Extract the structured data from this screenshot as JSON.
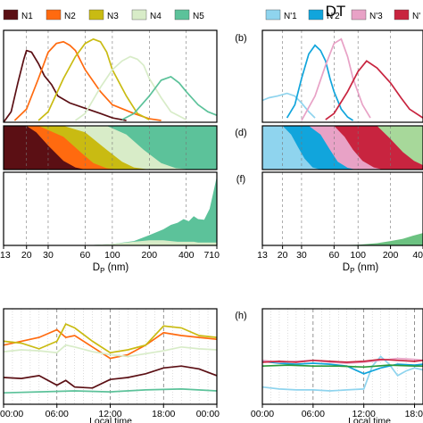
{
  "figure": {
    "title": "DT",
    "panel_labels": [
      "(b)",
      "(d)",
      "(f)",
      "(h)"
    ],
    "xlabel_size": "D",
    "xlabel_size_sub": "P",
    "xlabel_size_unit": " (nm)",
    "xlabel_time": "Local time",
    "size_ticks": [
      "13",
      "20",
      "30",
      "60",
      "100",
      "200",
      "400",
      "710"
    ],
    "size_ticks_right": [
      "13",
      "20",
      "30",
      "60",
      "100",
      "200",
      "40"
    ],
    "time_ticks": [
      "00:00",
      "06:00",
      "12:00",
      "18:00",
      "00:00"
    ],
    "time_ticks_right": [
      "00:00",
      "06:00",
      "12:00",
      "18:0"
    ]
  },
  "legend_left": [
    {
      "label": "N1",
      "color": "#5b0f14"
    },
    {
      "label": "N2",
      "color": "#ff6a0f"
    },
    {
      "label": "N3",
      "color": "#c9bb12"
    },
    {
      "label": "N4",
      "color": "#d8ecc8"
    },
    {
      "label": "N5",
      "color": "#5cc29a"
    }
  ],
  "legend_right": [
    {
      "label": "N'1",
      "color": "#8fd4ee"
    },
    {
      "label": "N'2",
      "color": "#11a5dc"
    },
    {
      "label": "N'3",
      "color": "#e8a2c6"
    },
    {
      "label": "N'",
      "color": "#c8243f"
    }
  ],
  "chart_data": [
    {
      "type": "line",
      "panel": "left-top",
      "xscale": "log",
      "xlim": [
        13,
        710
      ],
      "series": [
        {
          "name": "N1",
          "color": "#5b0f14",
          "x": [
            13,
            15,
            17,
            19,
            20,
            22,
            25,
            28,
            32,
            36,
            45,
            60,
            80,
            100,
            130
          ],
          "y": [
            0.0,
            0.12,
            0.45,
            0.72,
            0.82,
            0.8,
            0.67,
            0.53,
            0.43,
            0.3,
            0.22,
            0.16,
            0.1,
            0.05,
            0.02
          ]
        },
        {
          "name": "N2",
          "color": "#ff6a0f",
          "x": [
            16,
            20,
            25,
            30,
            35,
            40,
            45,
            50,
            60,
            80,
            100,
            150,
            200,
            250
          ],
          "y": [
            0.02,
            0.15,
            0.5,
            0.8,
            0.9,
            0.92,
            0.88,
            0.82,
            0.6,
            0.35,
            0.2,
            0.1,
            0.04,
            0.02
          ]
        },
        {
          "name": "N3",
          "color": "#c9bb12",
          "x": [
            25,
            30,
            40,
            50,
            60,
            70,
            80,
            90,
            100,
            130,
            160,
            200
          ],
          "y": [
            0.02,
            0.12,
            0.5,
            0.75,
            0.9,
            0.95,
            0.92,
            0.8,
            0.6,
            0.3,
            0.1,
            0.03
          ]
        },
        {
          "name": "N4",
          "color": "#d8ecc8",
          "x": [
            50,
            60,
            80,
            100,
            120,
            140,
            160,
            180,
            200,
            250,
            300,
            400
          ],
          "y": [
            0.02,
            0.1,
            0.4,
            0.6,
            0.7,
            0.75,
            0.72,
            0.65,
            0.5,
            0.28,
            0.12,
            0.03
          ]
        },
        {
          "name": "N5",
          "color": "#5cc29a",
          "x": [
            120,
            150,
            200,
            250,
            300,
            350,
            400,
            500,
            600,
            710
          ],
          "y": [
            0.03,
            0.1,
            0.3,
            0.48,
            0.52,
            0.45,
            0.35,
            0.2,
            0.12,
            0.08
          ]
        }
      ]
    },
    {
      "type": "area",
      "panel": "left-middle",
      "xscale": "log",
      "xlim": [
        13,
        710
      ],
      "series_order_top_to_bottom": [
        "N5",
        "N4",
        "N3",
        "N2",
        "N1"
      ],
      "boundaries": [
        {
          "name": "N1",
          "x": [
            13,
            20,
            24,
            30,
            40,
            50,
            60
          ],
          "y": [
            1.0,
            1.0,
            0.85,
            0.55,
            0.2,
            0.05,
            0.0
          ]
        },
        {
          "name": "N2",
          "x": [
            13,
            25,
            40,
            55,
            70,
            90,
            110
          ],
          "y": [
            1.0,
            1.0,
            0.75,
            0.4,
            0.15,
            0.03,
            0.0
          ]
        },
        {
          "name": "N3",
          "x": [
            13,
            40,
            60,
            90,
            120,
            150,
            200
          ],
          "y": [
            1.0,
            1.0,
            0.85,
            0.45,
            0.18,
            0.05,
            0.0
          ]
        },
        {
          "name": "N4",
          "x": [
            13,
            90,
            130,
            180,
            250,
            330,
            450
          ],
          "y": [
            1.0,
            1.0,
            0.8,
            0.45,
            0.15,
            0.03,
            0.0
          ]
        }
      ]
    },
    {
      "type": "area",
      "panel": "left-lower",
      "xscale": "log",
      "xlim": [
        13,
        710
      ],
      "series": [
        {
          "name": "N5",
          "x": [
            60,
            100,
            150,
            200,
            260,
            300,
            340,
            380,
            420,
            460,
            500,
            560,
            620,
            660,
            700,
            710
          ],
          "y": [
            0.0,
            0.02,
            0.06,
            0.14,
            0.22,
            0.28,
            0.31,
            0.36,
            0.33,
            0.4,
            0.36,
            0.35,
            0.5,
            0.7,
            0.9,
            0.95
          ]
        },
        {
          "name": "N4",
          "x": [
            60,
            100,
            150,
            200,
            260,
            300,
            340,
            380,
            420,
            460,
            500,
            560,
            620,
            660,
            700,
            710
          ],
          "y": [
            0.0,
            0.02,
            0.05,
            0.07,
            0.07,
            0.06,
            0.05,
            0.05,
            0.05,
            0.05,
            0.04,
            0.04,
            0.04,
            0.04,
            0.04,
            0.04
          ]
        }
      ]
    },
    {
      "type": "line",
      "panel": "left-bottom",
      "x_unit": "hour",
      "xlim": [
        0,
        24
      ],
      "series": [
        {
          "name": "N1",
          "color": "#5b0f14",
          "x": [
            0,
            2,
            4,
            6,
            7,
            8,
            10,
            12,
            14,
            16,
            18,
            20,
            22,
            24
          ],
          "y": [
            0.28,
            0.27,
            0.3,
            0.2,
            0.25,
            0.18,
            0.17,
            0.26,
            0.28,
            0.32,
            0.38,
            0.4,
            0.37,
            0.3
          ]
        },
        {
          "name": "N2",
          "color": "#ff6a0f",
          "x": [
            0,
            2,
            4,
            6,
            7,
            8,
            10,
            12,
            14,
            16,
            18,
            20,
            22,
            24
          ],
          "y": [
            0.62,
            0.66,
            0.7,
            0.78,
            0.7,
            0.72,
            0.6,
            0.48,
            0.52,
            0.62,
            0.75,
            0.72,
            0.7,
            0.68
          ]
        },
        {
          "name": "N3",
          "color": "#c9bb12",
          "x": [
            0,
            2,
            4,
            6,
            7,
            8,
            10,
            12,
            14,
            16,
            18,
            20,
            22,
            24
          ],
          "y": [
            0.66,
            0.64,
            0.58,
            0.66,
            0.84,
            0.8,
            0.66,
            0.54,
            0.57,
            0.62,
            0.82,
            0.8,
            0.72,
            0.7
          ]
        },
        {
          "name": "N4",
          "color": "#d8ecc8",
          "x": [
            0,
            2,
            4,
            6,
            7,
            8,
            10,
            12,
            14,
            16,
            18,
            20,
            22,
            24
          ],
          "y": [
            0.55,
            0.57,
            0.56,
            0.54,
            0.62,
            0.6,
            0.55,
            0.52,
            0.5,
            0.53,
            0.56,
            0.6,
            0.58,
            0.57
          ]
        },
        {
          "name": "N5",
          "color": "#5cc29a",
          "x": [
            0,
            4,
            8,
            12,
            16,
            20,
            24
          ],
          "y": [
            0.12,
            0.13,
            0.14,
            0.13,
            0.15,
            0.16,
            0.14
          ]
        }
      ]
    },
    {
      "type": "line",
      "panel": "right-top",
      "xscale": "log",
      "xlim": [
        13,
        400
      ],
      "series": [
        {
          "name": "N'1",
          "color": "#8fd4ee",
          "x": [
            13,
            15,
            18,
            22,
            26,
            30,
            35,
            40
          ],
          "y": [
            0.25,
            0.28,
            0.3,
            0.33,
            0.3,
            0.22,
            0.12,
            0.05
          ]
        },
        {
          "name": "N'2",
          "color": "#11a5dc",
          "x": [
            22,
            26,
            30,
            35,
            40,
            45,
            50,
            55,
            60,
            70,
            80,
            90
          ],
          "y": [
            0.05,
            0.2,
            0.5,
            0.78,
            0.88,
            0.82,
            0.7,
            0.5,
            0.35,
            0.15,
            0.06,
            0.02
          ]
        },
        {
          "name": "N'3",
          "color": "#e8a2c6",
          "x": [
            30,
            40,
            50,
            60,
            70,
            80,
            90,
            110,
            130
          ],
          "y": [
            0.02,
            0.3,
            0.65,
            0.9,
            0.95,
            0.75,
            0.5,
            0.2,
            0.05
          ]
        },
        {
          "name": "N'",
          "color": "#c8243f",
          "x": [
            50,
            60,
            80,
            100,
            120,
            150,
            200,
            250,
            300,
            400
          ],
          "y": [
            0.03,
            0.1,
            0.35,
            0.58,
            0.7,
            0.62,
            0.45,
            0.28,
            0.15,
            0.05
          ]
        }
      ]
    },
    {
      "type": "area",
      "panel": "right-middle",
      "xscale": "log",
      "xlim": [
        13,
        400
      ],
      "boundaries": [
        {
          "name": "N'1",
          "x": [
            13,
            20,
            24,
            28,
            32,
            38,
            45
          ],
          "y": [
            1.0,
            1.0,
            0.8,
            0.5,
            0.25,
            0.05,
            0.0
          ]
        },
        {
          "name": "N'2",
          "x": [
            13,
            35,
            45,
            55,
            65,
            80,
            95
          ],
          "y": [
            1.0,
            1.0,
            0.8,
            0.45,
            0.18,
            0.04,
            0.0
          ]
        },
        {
          "name": "N'3",
          "x": [
            13,
            60,
            75,
            90,
            110,
            140,
            170
          ],
          "y": [
            1.0,
            1.0,
            0.75,
            0.45,
            0.2,
            0.05,
            0.0
          ]
        },
        {
          "name": "N'",
          "x": [
            13,
            150,
            200,
            260,
            330,
            400
          ],
          "y": [
            1.0,
            1.0,
            0.7,
            0.4,
            0.2,
            0.1
          ]
        }
      ]
    },
    {
      "type": "area",
      "panel": "right-lower",
      "xscale": "log",
      "xlim": [
        13,
        400
      ],
      "series": [
        {
          "name": "N'",
          "x": [
            60,
            100,
            150,
            200,
            260,
            320,
            400
          ],
          "y": [
            0.0,
            0.01,
            0.03,
            0.06,
            0.09,
            0.13,
            0.17
          ]
        }
      ]
    },
    {
      "type": "line",
      "panel": "right-bottom",
      "x_unit": "hour",
      "xlim": [
        0,
        19
      ],
      "series": [
        {
          "name": "N'1",
          "color": "#8fd4ee",
          "x": [
            0,
            2,
            4,
            6,
            8,
            10,
            12,
            13,
            14,
            15,
            16,
            17,
            18,
            19
          ],
          "y": [
            0.18,
            0.16,
            0.15,
            0.15,
            0.14,
            0.15,
            0.16,
            0.4,
            0.5,
            0.42,
            0.3,
            0.35,
            0.38,
            0.36
          ]
        },
        {
          "name": "N'2",
          "color": "#11a5dc",
          "x": [
            0,
            2,
            4,
            6,
            8,
            10,
            12,
            14,
            16,
            18,
            19
          ],
          "y": [
            0.45,
            0.43,
            0.42,
            0.43,
            0.42,
            0.4,
            0.32,
            0.38,
            0.42,
            0.41,
            0.42
          ]
        },
        {
          "name": "N'3",
          "color": "#e8a2c6",
          "x": [
            0,
            2,
            4,
            6,
            8,
            10,
            12,
            14,
            16,
            18,
            19
          ],
          "y": [
            0.46,
            0.44,
            0.45,
            0.46,
            0.44,
            0.43,
            0.44,
            0.46,
            0.48,
            0.47,
            0.46
          ]
        },
        {
          "name": "N'",
          "color": "#c8243f",
          "x": [
            0,
            2,
            4,
            6,
            8,
            10,
            12,
            14,
            16,
            18,
            19
          ],
          "y": [
            0.44,
            0.45,
            0.44,
            0.46,
            0.45,
            0.44,
            0.45,
            0.47,
            0.46,
            0.45,
            0.46
          ]
        },
        {
          "name": "",
          "color": "#2a9a3a",
          "x": [
            0,
            3,
            6,
            9,
            12,
            15,
            18,
            19
          ],
          "y": [
            0.4,
            0.41,
            0.4,
            0.4,
            0.39,
            0.41,
            0.4,
            0.4
          ]
        }
      ]
    }
  ]
}
